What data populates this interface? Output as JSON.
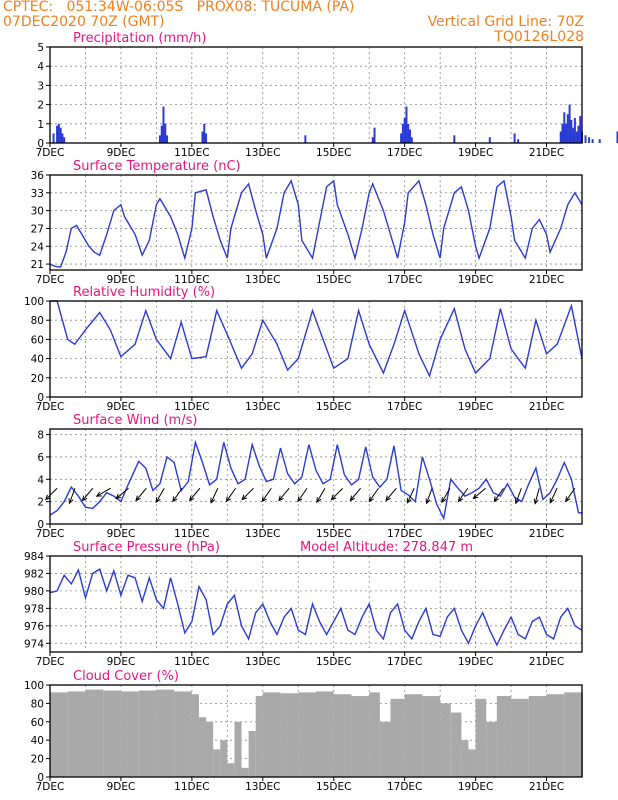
{
  "header": {
    "line1_left": "CPTEC:   051:34W-06:05S   PROX08: TUCUMA (PA)",
    "line2_left": "07DEC2020 70Z (GMT)",
    "line2_right": "Vertical Grid Line: 70Z",
    "line3_right": "TQ0126L028"
  },
  "colors": {
    "header": "#f07f1f",
    "title": "#e5157f",
    "line": "#2a3bd6",
    "bar": "#2a3bd6",
    "cloud": "#a9a9a9"
  },
  "x_ticks": [
    "7DEC",
    "9DEC",
    "11DEC",
    "13DEC",
    "15DEC",
    "17DEC",
    "19DEC",
    "21DEC"
  ],
  "chart_data": [
    {
      "id": "precip",
      "type": "bar",
      "title": "Precipitation (mm/h)",
      "ylim": [
        0,
        5
      ],
      "yticks": [
        0,
        1,
        2,
        3,
        4,
        5
      ],
      "grid": true,
      "x": [
        7.1,
        7.2,
        7.25,
        7.3,
        7.35,
        7.4,
        10.1,
        10.15,
        10.2,
        10.25,
        10.3,
        11.3,
        11.35,
        11.4,
        14.2,
        16.1,
        16.15,
        16.9,
        16.95,
        17.0,
        17.05,
        17.1,
        17.15,
        17.2,
        18.4,
        19.4,
        20.1,
        20.2,
        21.4,
        21.45,
        21.5,
        21.55,
        21.6,
        21.65,
        21.7,
        21.75,
        21.8,
        21.85,
        21.9,
        21.95,
        22.0,
        22.1,
        22.2,
        22.3,
        22.5,
        23.0
      ],
      "values": [
        0.5,
        0.9,
        1.0,
        0.8,
        0.5,
        0.3,
        0.4,
        0.9,
        1.9,
        1.0,
        0.4,
        0.6,
        1.0,
        0.5,
        0.4,
        0.3,
        0.8,
        0.5,
        1.0,
        1.3,
        1.9,
        1.0,
        0.7,
        0.3,
        0.4,
        0.3,
        0.5,
        0.2,
        0.6,
        1.0,
        1.6,
        1.0,
        1.5,
        2.0,
        1.2,
        0.8,
        1.3,
        0.6,
        0.9,
        1.4,
        0.6,
        0.4,
        0.3,
        0.2,
        0.2,
        0.6
      ]
    },
    {
      "id": "temp",
      "type": "line",
      "title": "Surface Temperature (nC)",
      "ylim": [
        20,
        36
      ],
      "yticks": [
        21,
        24,
        27,
        30,
        33,
        36
      ],
      "grid": true,
      "x": [
        7.0,
        7.15,
        7.3,
        7.45,
        7.6,
        7.75,
        7.9,
        8.1,
        8.25,
        8.4,
        8.6,
        8.8,
        9.0,
        9.1,
        9.4,
        9.6,
        9.8,
        10.0,
        10.1,
        10.4,
        10.6,
        10.8,
        11.0,
        11.1,
        11.4,
        11.6,
        11.8,
        12.0,
        12.1,
        12.4,
        12.6,
        12.8,
        13.0,
        13.1,
        13.4,
        13.6,
        13.8,
        14.0,
        14.1,
        14.4,
        14.6,
        14.8,
        15.0,
        15.1,
        15.4,
        15.6,
        15.8,
        16.0,
        16.1,
        16.4,
        16.6,
        16.8,
        17.0,
        17.1,
        17.4,
        17.6,
        17.8,
        18.0,
        18.1,
        18.4,
        18.6,
        18.8,
        19.0,
        19.1,
        19.4,
        19.6,
        19.8,
        20.0,
        20.1,
        20.4,
        20.6,
        20.8,
        21.0,
        21.1,
        21.4,
        21.6,
        21.8,
        22.0
      ],
      "values": [
        21,
        20.6,
        20.5,
        23,
        27,
        27.5,
        26,
        24,
        23,
        22.5,
        26,
        30,
        31,
        29,
        26,
        22.5,
        25,
        31,
        32,
        29,
        26,
        22,
        27,
        33,
        33.5,
        29,
        25,
        22,
        27,
        33,
        34.5,
        30,
        26,
        22,
        27,
        33,
        35,
        31,
        25,
        22,
        28,
        34,
        35,
        31,
        26,
        22,
        27,
        33,
        34.5,
        30,
        26,
        22,
        28,
        33,
        35,
        31,
        26,
        22,
        27,
        33,
        34,
        30,
        24,
        22,
        27,
        34,
        35,
        29,
        25,
        22,
        27,
        28.5,
        26,
        23,
        27,
        31,
        33,
        31
      ]
    },
    {
      "id": "rh",
      "type": "line",
      "title": "Relative Humidity (%)",
      "ylim": [
        0,
        100
      ],
      "yticks": [
        0,
        20,
        40,
        60,
        80,
        100
      ],
      "grid": true,
      "x": [
        7.0,
        7.2,
        7.5,
        7.7,
        8.0,
        8.4,
        8.7,
        9.0,
        9.4,
        9.7,
        10.0,
        10.4,
        10.7,
        11.0,
        11.4,
        11.7,
        12.0,
        12.4,
        12.7,
        13.0,
        13.4,
        13.7,
        14.0,
        14.4,
        14.7,
        15.0,
        15.4,
        15.7,
        16.0,
        16.4,
        16.7,
        17.0,
        17.4,
        17.7,
        18.0,
        18.4,
        18.7,
        19.0,
        19.4,
        19.7,
        20.0,
        20.4,
        20.7,
        21.0,
        21.3,
        21.7,
        22.0
      ],
      "values": [
        100,
        100,
        60,
        55,
        70,
        88,
        70,
        42,
        55,
        90,
        60,
        40,
        78,
        40,
        42,
        90,
        65,
        30,
        45,
        80,
        55,
        28,
        40,
        90,
        60,
        30,
        40,
        90,
        55,
        25,
        55,
        90,
        45,
        22,
        60,
        92,
        50,
        25,
        40,
        92,
        50,
        30,
        80,
        45,
        55,
        95,
        40
      ]
    },
    {
      "id": "wind",
      "type": "line",
      "title": "Surface Wind (m/s)",
      "ylim": [
        0,
        8.5
      ],
      "yticks": [
        0,
        2,
        4,
        6,
        8
      ],
      "grid": true,
      "x": [
        7.0,
        7.2,
        7.4,
        7.6,
        7.8,
        8.0,
        8.2,
        8.4,
        8.6,
        8.8,
        9.0,
        9.2,
        9.5,
        9.7,
        9.9,
        10.1,
        10.3,
        10.5,
        10.7,
        10.9,
        11.1,
        11.3,
        11.5,
        11.7,
        11.9,
        12.1,
        12.3,
        12.5,
        12.7,
        12.9,
        13.1,
        13.3,
        13.5,
        13.7,
        13.9,
        14.1,
        14.3,
        14.5,
        14.7,
        14.9,
        15.1,
        15.3,
        15.5,
        15.7,
        15.9,
        16.1,
        16.3,
        16.5,
        16.7,
        16.9,
        17.1,
        17.3,
        17.5,
        17.7,
        17.9,
        18.1,
        18.3,
        18.5,
        18.7,
        18.9,
        19.1,
        19.3,
        19.5,
        19.7,
        19.9,
        20.1,
        20.3,
        20.5,
        20.7,
        20.9,
        21.1,
        21.3,
        21.5,
        21.7,
        21.9,
        22.0
      ],
      "values": [
        0.8,
        1.2,
        2.0,
        3.3,
        2.5,
        1.5,
        1.4,
        2.0,
        2.8,
        2.5,
        2.0,
        3.5,
        5.6,
        5.0,
        3.0,
        3.6,
        6.0,
        5.5,
        3.0,
        3.8,
        7.3,
        5.5,
        3.5,
        4.0,
        7.3,
        5.0,
        3.6,
        4.0,
        7.1,
        5.2,
        3.8,
        4.0,
        6.8,
        4.5,
        3.6,
        4.2,
        7.1,
        4.8,
        3.6,
        4.0,
        7.1,
        4.4,
        3.5,
        4.0,
        6.9,
        4.2,
        3.3,
        4.0,
        7.0,
        3.0,
        2.6,
        2.0,
        6.0,
        4.0,
        1.8,
        0.5,
        4.0,
        3.2,
        2.5,
        2.8,
        3.2,
        4.0,
        2.8,
        2.5,
        3.6,
        2.4,
        2.0,
        3.6,
        5.0,
        2.2,
        2.8,
        4.0,
        5.5,
        4.0,
        1.0,
        1.0
      ],
      "arrows_dir_deg": [
        225,
        200,
        220,
        240,
        230,
        220,
        210,
        215,
        220,
        205,
        215,
        225,
        215,
        220,
        215,
        210,
        225,
        220,
        215,
        220,
        205,
        200,
        210,
        215,
        230,
        215,
        200,
        195,
        205,
        215
      ]
    },
    {
      "id": "pressure",
      "type": "line",
      "title": "Surface Pressure (hPa)",
      "annotation": "Model Altitude: 278.847 m",
      "ylim": [
        973,
        984
      ],
      "yticks": [
        974,
        976,
        978,
        980,
        982,
        984
      ],
      "grid": true,
      "x": [
        7.0,
        7.2,
        7.4,
        7.6,
        7.8,
        8.0,
        8.2,
        8.4,
        8.6,
        8.8,
        9.0,
        9.2,
        9.4,
        9.6,
        9.8,
        10.0,
        10.2,
        10.4,
        10.6,
        10.8,
        11.0,
        11.2,
        11.4,
        11.6,
        11.8,
        12.0,
        12.2,
        12.4,
        12.6,
        12.8,
        13.0,
        13.2,
        13.4,
        13.6,
        13.8,
        14.0,
        14.2,
        14.4,
        14.6,
        14.8,
        15.0,
        15.2,
        15.4,
        15.6,
        15.8,
        16.0,
        16.2,
        16.4,
        16.6,
        16.8,
        17.0,
        17.2,
        17.4,
        17.6,
        17.8,
        18.0,
        18.2,
        18.4,
        18.6,
        18.8,
        19.0,
        19.2,
        19.4,
        19.6,
        19.8,
        20.0,
        20.2,
        20.4,
        20.6,
        20.8,
        21.0,
        21.2,
        21.4,
        21.6,
        21.8,
        22.0
      ],
      "values": [
        979.8,
        980.0,
        981.8,
        980.8,
        982.4,
        979.2,
        982.0,
        982.5,
        980.0,
        982.3,
        979.5,
        981.8,
        981.5,
        978.8,
        981.5,
        979.0,
        978.0,
        981.5,
        978.5,
        975.2,
        976.5,
        980.5,
        979.0,
        975.0,
        976.0,
        978.5,
        979.5,
        976.0,
        974.5,
        977.5,
        978.5,
        976.5,
        975.0,
        977.0,
        978.0,
        975.5,
        975.0,
        978.5,
        976.5,
        975.0,
        976.5,
        978.0,
        975.5,
        975.0,
        977.0,
        978.5,
        975.5,
        974.5,
        977.5,
        978.5,
        975.5,
        974.5,
        976.5,
        978.0,
        975.0,
        974.8,
        977.0,
        978.0,
        975.5,
        974.0,
        976.0,
        977.5,
        975.5,
        973.8,
        975.5,
        977.0,
        975.0,
        974.5,
        976.5,
        977.0,
        975.0,
        974.5,
        977.0,
        978.0,
        976.0,
        975.5
      ]
    },
    {
      "id": "cloud",
      "type": "area",
      "title": "Cloud Cover (%)",
      "ylim": [
        0,
        100
      ],
      "yticks": [
        0,
        20,
        40,
        60,
        80,
        100
      ],
      "grid": true,
      "x": [
        7.0,
        7.5,
        8.0,
        8.5,
        9.0,
        9.5,
        10.0,
        10.5,
        11.0,
        11.2,
        11.4,
        11.6,
        11.8,
        12.0,
        12.2,
        12.4,
        12.6,
        12.8,
        13.0,
        13.5,
        14.0,
        14.5,
        15.0,
        15.5,
        16.0,
        16.3,
        16.6,
        17.0,
        17.5,
        18.0,
        18.3,
        18.6,
        18.8,
        19.0,
        19.3,
        19.6,
        20.0,
        20.5,
        21.0,
        21.5,
        22.0
      ],
      "values": [
        92,
        93,
        95,
        94,
        93,
        94,
        95,
        93,
        90,
        65,
        60,
        30,
        40,
        15,
        60,
        10,
        50,
        88,
        92,
        91,
        92,
        93,
        90,
        88,
        92,
        60,
        85,
        90,
        88,
        80,
        70,
        40,
        30,
        85,
        60,
        88,
        85,
        88,
        90,
        92,
        92
      ]
    }
  ]
}
